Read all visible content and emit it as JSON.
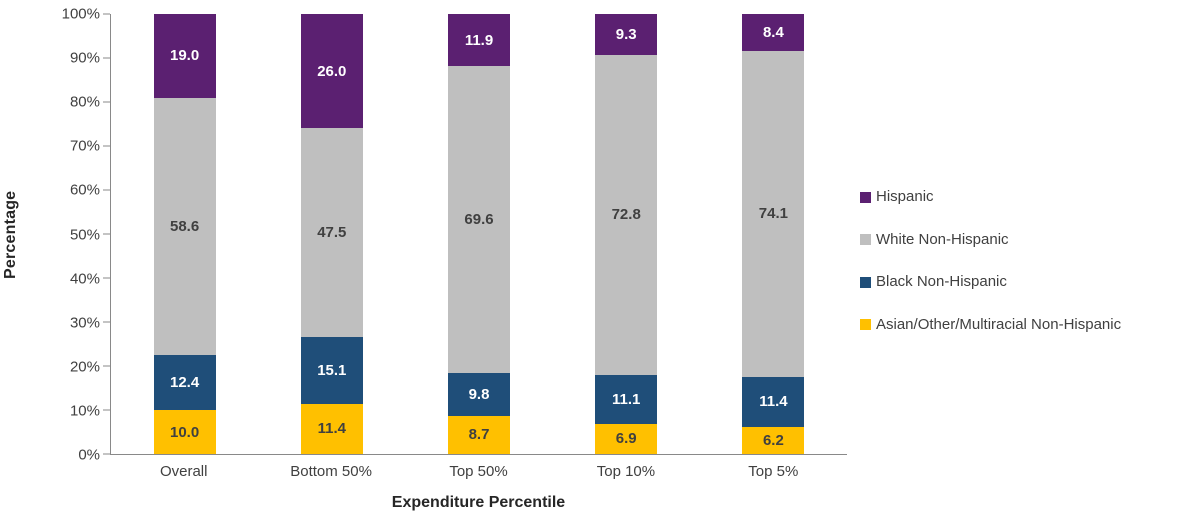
{
  "chart_data": {
    "type": "bar",
    "stacked": true,
    "title": "",
    "xlabel": "Expenditure Percentile",
    "ylabel": "Percentage",
    "ylim": [
      0,
      100
    ],
    "ytick_step": 10,
    "ytick_suffix": "%",
    "grid": false,
    "legend_position": "right",
    "categories": [
      "Overall",
      "Bottom 50%",
      "Top 50%",
      "Top 10%",
      "Top 5%"
    ],
    "series": [
      {
        "name": "Asian/Other/Multiracial Non-Hispanic",
        "color": "#FFC000",
        "label_color": "#404040",
        "values": [
          10.0,
          11.4,
          8.7,
          6.9,
          6.2
        ]
      },
      {
        "name": "Black Non-Hispanic",
        "color": "#1F4E79",
        "label_color": "#FFFFFF",
        "values": [
          12.4,
          15.1,
          9.8,
          11.1,
          11.4
        ]
      },
      {
        "name": "White Non-Hispanic",
        "color": "#BFBFBF",
        "label_color": "#404040",
        "values": [
          58.6,
          47.5,
          69.6,
          72.8,
          74.1
        ]
      },
      {
        "name": "Hispanic",
        "color": "#5B2071",
        "label_color": "#FFFFFF",
        "values": [
          19.0,
          26.0,
          11.9,
          9.3,
          8.4
        ]
      }
    ],
    "legend_order": [
      "Hispanic",
      "White Non-Hispanic",
      "Black Non-Hispanic",
      "Asian/Other/Multiracial Non-Hispanic"
    ]
  }
}
